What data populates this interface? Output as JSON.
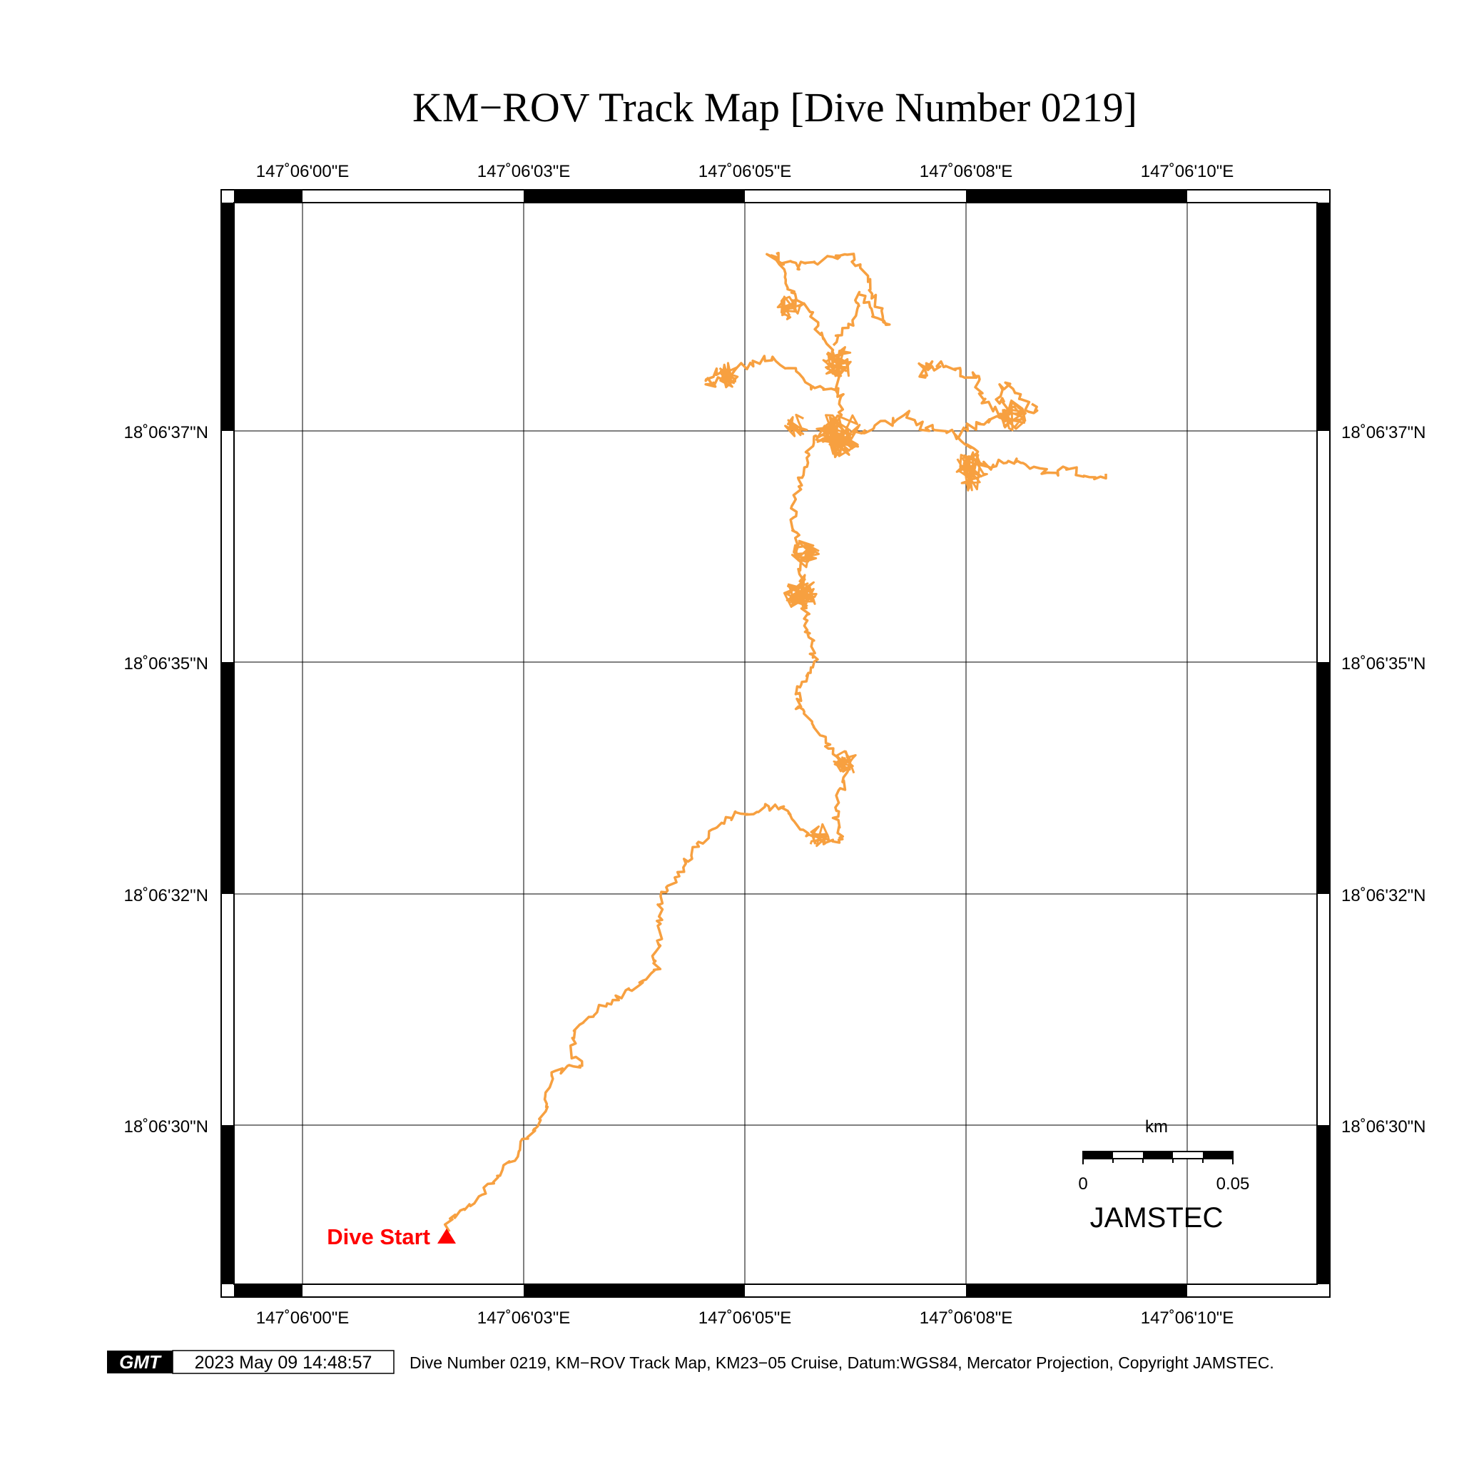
{
  "title": "KM−ROV Track Map [Dive Number 0219]",
  "axes": {
    "lon_ticks": [
      "147˚06'00\"E",
      "147˚06'03\"E",
      "147˚06'05\"E",
      "147˚06'08\"E",
      "147˚06'10\"E"
    ],
    "lat_ticks": [
      "18˚06'37\"N",
      "18˚06'35\"N",
      "18˚06'32\"N",
      "18˚06'30\"N"
    ]
  },
  "start_label": "Dive Start",
  "scale_bar": {
    "unit": "km",
    "min_label": "0",
    "max_label": "0.05"
  },
  "org_label": "JAMSTEC",
  "footer": {
    "logo": "GMT",
    "timestamp": "2023 May 09 14:48:57",
    "caption": "Dive Number 0219, KM−ROV Track Map, KM23−05 Cruise, Datum:WGS84, Mercator Projection, Copyright JAMSTEC."
  },
  "colors": {
    "track": "#f7a040",
    "start_marker": "#ff0000",
    "frame": "#000000"
  }
}
